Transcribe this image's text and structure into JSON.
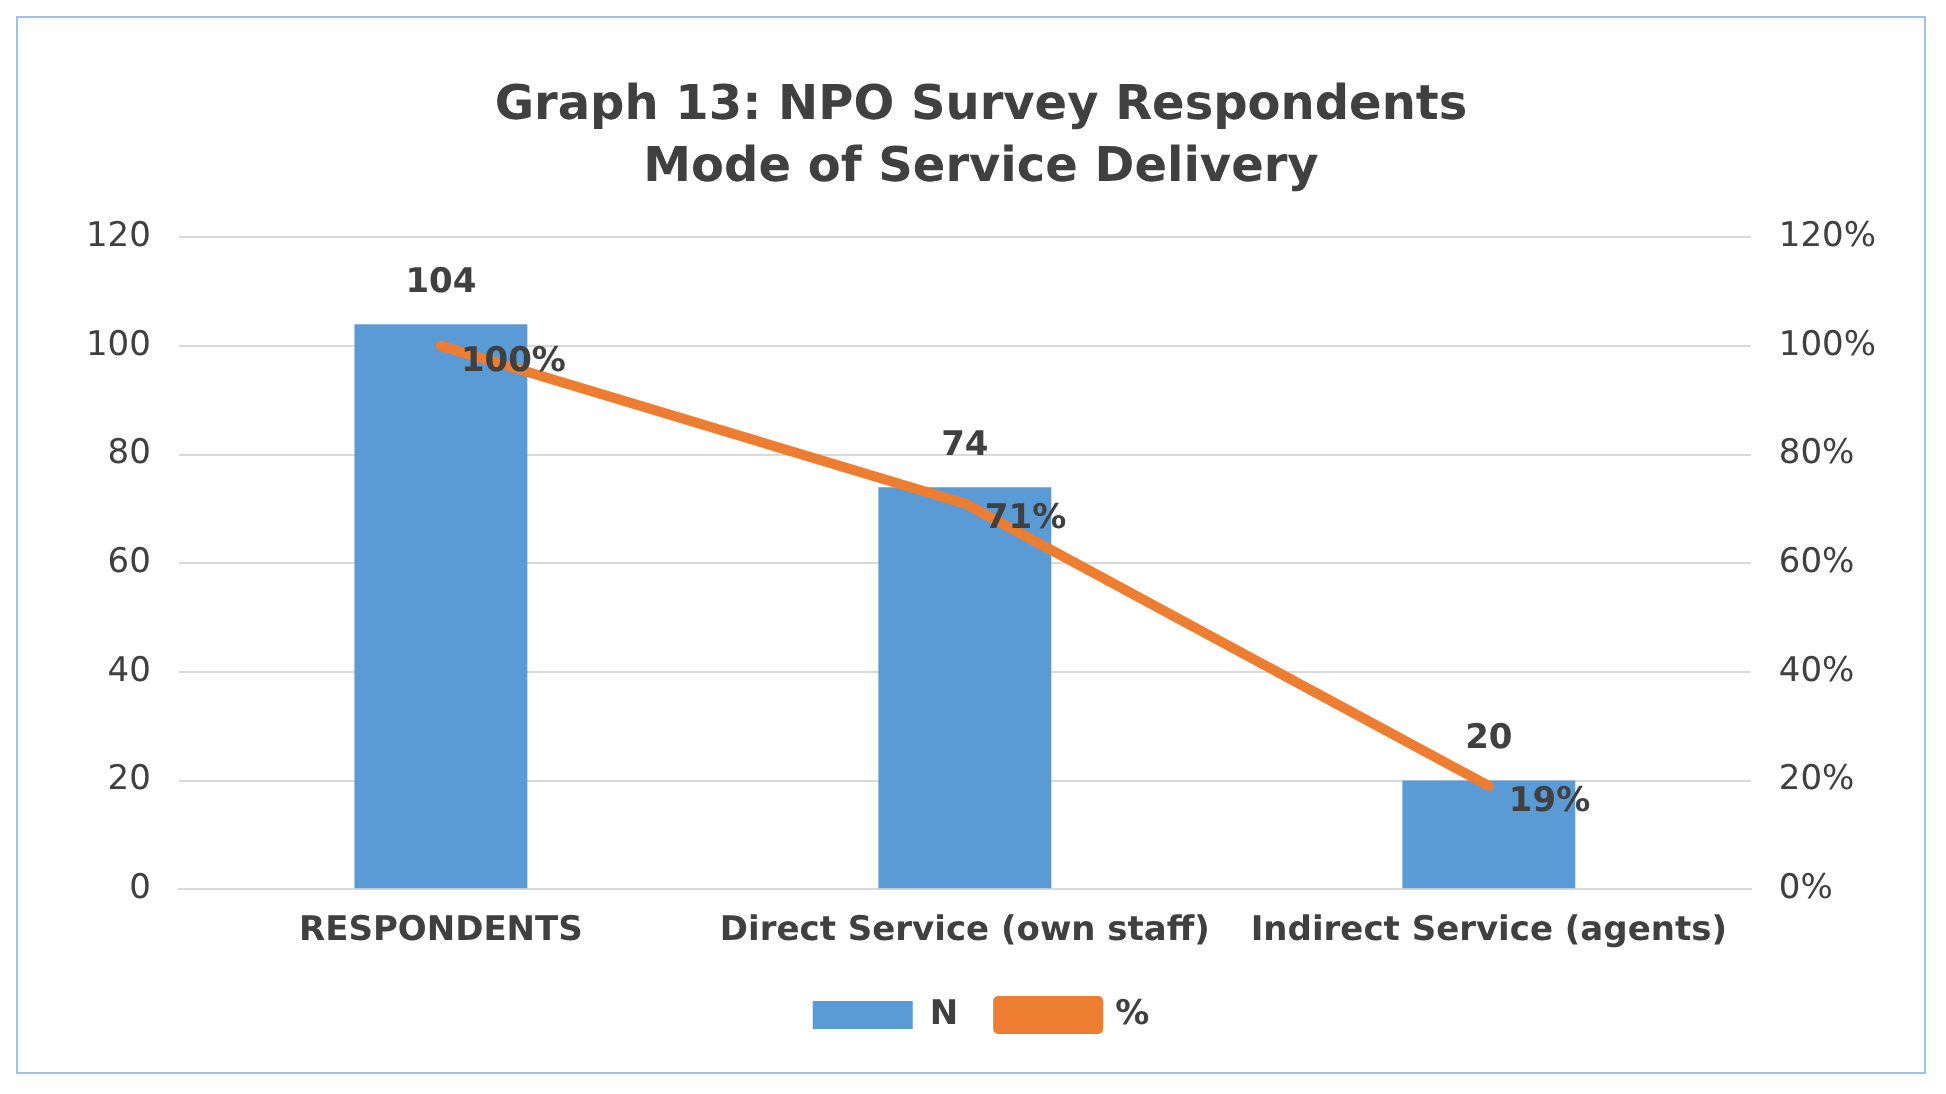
{
  "chart_data": {
    "type": "bar",
    "title": "Graph 13: NPO Survey Respondents",
    "subtitle": "Mode of Service Delivery",
    "categories": [
      "RESPONDENTS",
      "Direct Service (own staff)",
      "Indirect Service (agents)"
    ],
    "series": [
      {
        "name": "N",
        "type": "bar",
        "color": "#5b9bd5",
        "values": [
          104,
          74,
          20
        ],
        "value_labels": [
          "104",
          "74",
          "20"
        ]
      },
      {
        "name": "%",
        "type": "line",
        "axis": "y2",
        "color": "#ed7d31",
        "values": [
          100,
          71,
          19
        ],
        "value_labels": [
          "100%",
          "71%",
          "19%"
        ]
      }
    ],
    "ylim": [
      0,
      120
    ],
    "yticks": [
      0,
      20,
      40,
      60,
      80,
      100,
      120
    ],
    "y2lim": [
      0,
      120
    ],
    "y2ticks": [
      {
        "value": 0,
        "label": "0%"
      },
      {
        "value": 20,
        "label": "20%"
      },
      {
        "value": 40,
        "label": "40%"
      },
      {
        "value": 60,
        "label": "60%"
      },
      {
        "value": 80,
        "label": "80%"
      },
      {
        "value": 100,
        "label": "100%"
      },
      {
        "value": 120,
        "label": "120%"
      }
    ],
    "grid": "y",
    "legend": "bottom",
    "marker": "none",
    "line_style": "solid"
  }
}
